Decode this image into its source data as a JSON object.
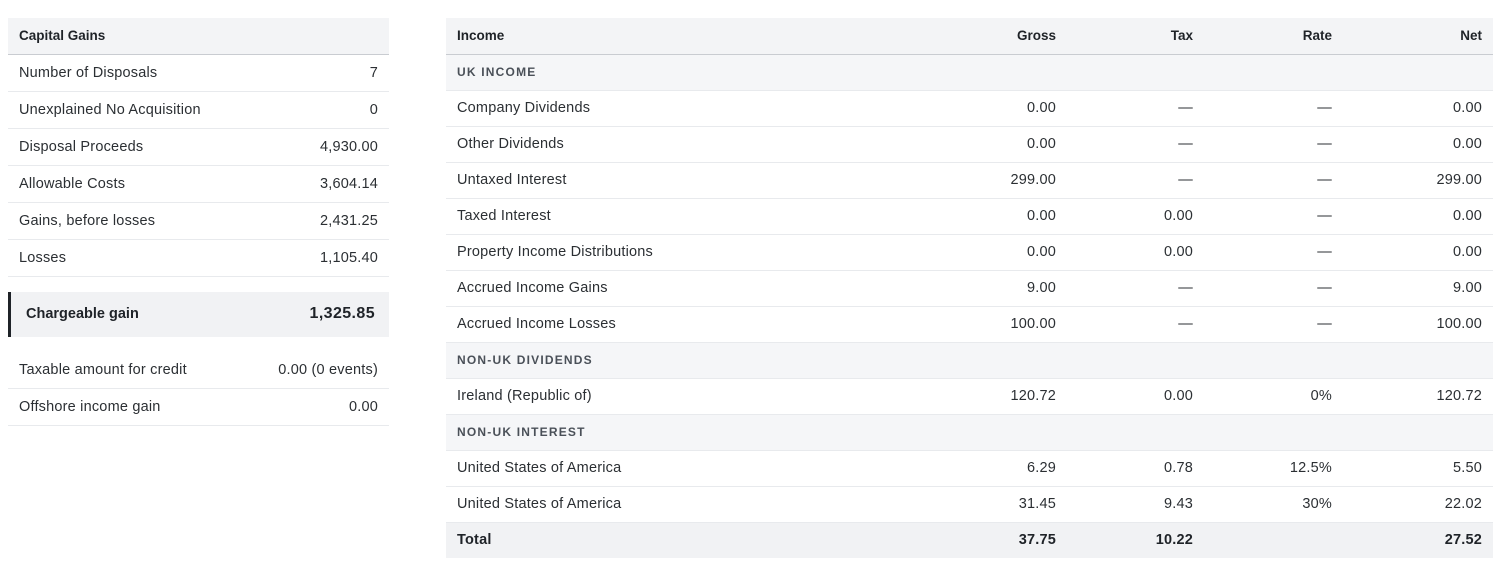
{
  "capital_gains": {
    "header": "Capital Gains",
    "rows": [
      {
        "label": "Number of Disposals",
        "value": "7"
      },
      {
        "label": "Unexplained No Acquisition",
        "value": "0"
      },
      {
        "label": "Disposal Proceeds",
        "value": "4,930.00"
      },
      {
        "label": "Allowable Costs",
        "value": "3,604.14"
      },
      {
        "label": "Gains, before losses",
        "value": "2,431.25"
      },
      {
        "label": "Losses",
        "value": "1,105.40"
      }
    ],
    "chargeable": {
      "label": "Chargeable gain",
      "value": "1,325.85"
    },
    "extra_rows": [
      {
        "label": "Taxable amount for credit",
        "value": "0.00 (0 events)"
      },
      {
        "label": "Offshore income gain",
        "value": "0.00"
      }
    ]
  },
  "income": {
    "headers": {
      "income": "Income",
      "gross": "Gross",
      "tax": "Tax",
      "rate": "Rate",
      "net": "Net"
    },
    "uk_section": "UK INCOME",
    "uk_rows": [
      {
        "name": "Company Dividends",
        "gross": "0.00",
        "tax": "—",
        "rate": "—",
        "net": "0.00"
      },
      {
        "name": "Other Dividends",
        "gross": "0.00",
        "tax": "—",
        "rate": "—",
        "net": "0.00"
      },
      {
        "name": "Untaxed Interest",
        "gross": "299.00",
        "tax": "—",
        "rate": "—",
        "net": "299.00"
      },
      {
        "name": "Taxed Interest",
        "gross": "0.00",
        "tax": "0.00",
        "rate": "—",
        "net": "0.00"
      },
      {
        "name": "Property Income Distributions",
        "gross": "0.00",
        "tax": "0.00",
        "rate": "—",
        "net": "0.00"
      },
      {
        "name": "Accrued Income Gains",
        "gross": "9.00",
        "tax": "—",
        "rate": "—",
        "net": "9.00"
      },
      {
        "name": "Accrued Income Losses",
        "gross": "100.00",
        "tax": "—",
        "rate": "—",
        "net": "100.00"
      }
    ],
    "div_section": "NON-UK DIVIDENDS",
    "div_rows": [
      {
        "name": "Ireland (Republic of)",
        "gross": "120.72",
        "tax": "0.00",
        "rate": "0%",
        "net": "120.72"
      }
    ],
    "int_section": "NON-UK INTEREST",
    "int_rows": [
      {
        "name": "United States of America",
        "gross": "6.29",
        "tax": "0.78",
        "rate": "12.5%",
        "net": "5.50"
      },
      {
        "name": "United States of America",
        "gross": "31.45",
        "tax": "9.43",
        "rate": "30%",
        "net": "22.02"
      }
    ],
    "total": {
      "label": "Total",
      "gross": "37.75",
      "tax": "10.22",
      "rate": "",
      "net": "27.52"
    }
  }
}
